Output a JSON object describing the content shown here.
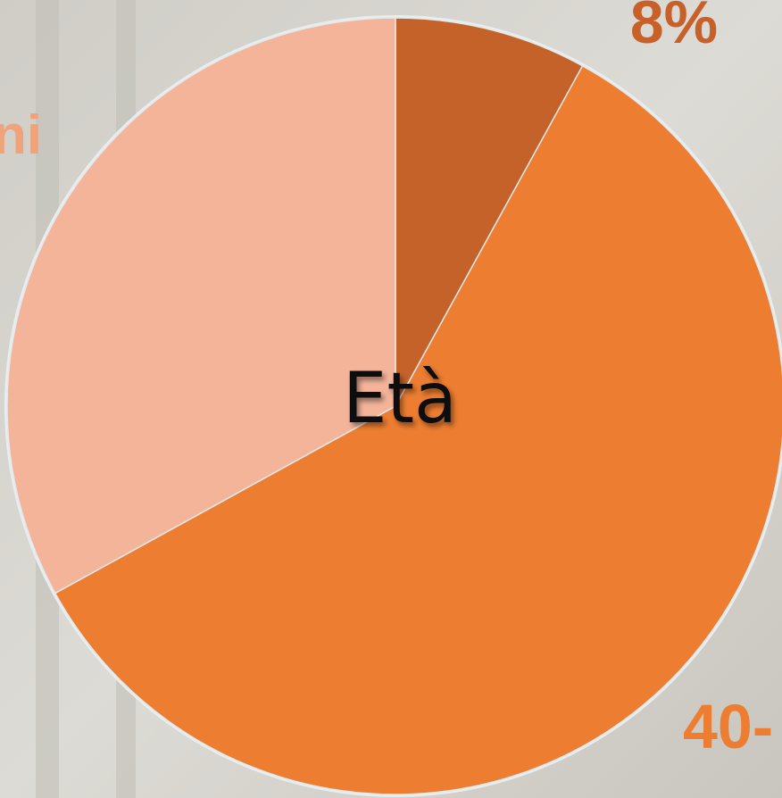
{
  "chart_data": {
    "type": "pie",
    "title": "Età",
    "values": [
      8,
      59,
      33
    ],
    "value_labels": [
      "8%",
      null,
      null
    ],
    "colors": [
      "#c4622a",
      "#ed7d31",
      "#f4b49a"
    ],
    "annotations": [
      "ni",
      "40-"
    ]
  }
}
